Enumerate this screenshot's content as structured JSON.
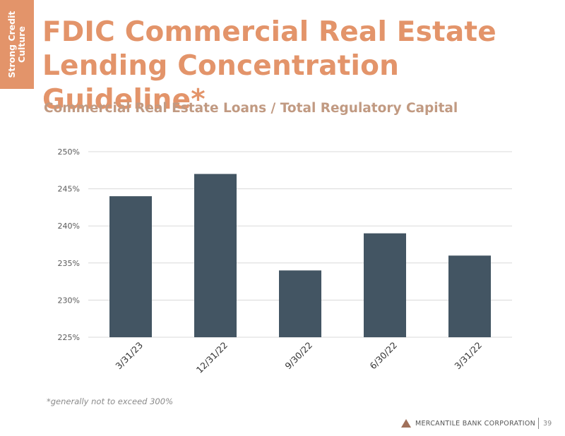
{
  "side_tab": {
    "lines": [
      "Strong Credit",
      "Culture"
    ]
  },
  "title": {
    "lines": [
      "FDIC Commercial Real Estate",
      "Lending Concentration Guideline*"
    ]
  },
  "subtitle": "Commercial Real Estate Loans / Total Regulatory Capital",
  "footnote": "*generally not to exceed 300%",
  "footer": {
    "logo_text": "MERCANTILE BANK CORPORATION",
    "page_number": "39"
  },
  "colors": {
    "accent": "#e3946a",
    "subtitle": "#c19a82",
    "bar": "#435563",
    "grid": "#d9d9d9",
    "logo": "#a0705a"
  },
  "chart_data": {
    "type": "bar",
    "title": "Commercial Real Estate Loans / Total Regulatory Capital",
    "categories": [
      "3/31/23",
      "12/31/22",
      "9/30/22",
      "6/30/22",
      "3/31/22"
    ],
    "values": [
      244,
      247,
      234,
      239,
      236
    ],
    "unit": "%",
    "ylim": [
      225,
      250
    ],
    "yticks": [
      225,
      230,
      235,
      240,
      245,
      250
    ],
    "ytick_labels": [
      "225%",
      "230%",
      "235%",
      "240%",
      "245%",
      "250%"
    ],
    "grid": true,
    "legend": "none",
    "xlabel": "",
    "ylabel": ""
  }
}
